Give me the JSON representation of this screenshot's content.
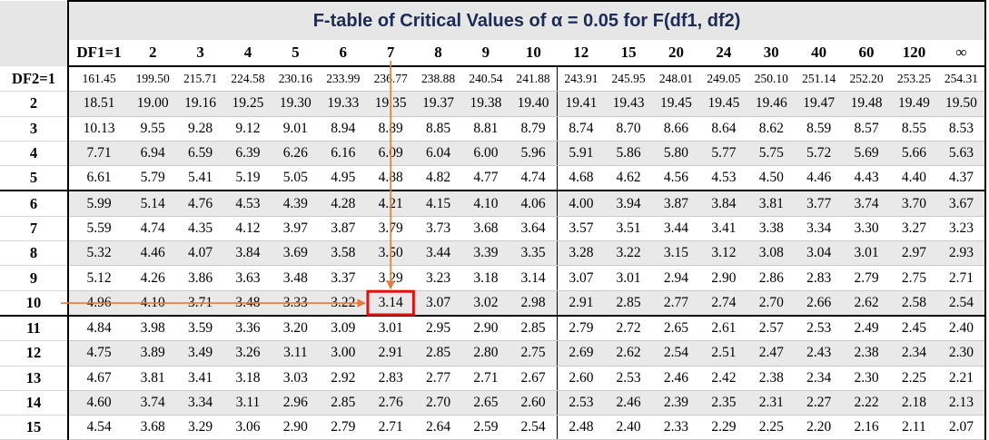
{
  "title": "F-table of Critical Values of α = 0.05 for F(df1, df2)",
  "df1_header": "DF1=1",
  "column_headers": [
    "2",
    "3",
    "4",
    "5",
    "6",
    "7",
    "8",
    "9",
    "10",
    "12",
    "15",
    "20",
    "24",
    "30",
    "40",
    "60",
    "120",
    "∞"
  ],
  "rows": [
    {
      "label": "DF2=1",
      "values": [
        "161.45",
        "199.50",
        "215.71",
        "224.58",
        "230.16",
        "233.99",
        "236.77",
        "238.88",
        "240.54",
        "241.88",
        "243.91",
        "245.95",
        "248.01",
        "249.05",
        "250.10",
        "251.14",
        "252.20",
        "253.25",
        "254.31"
      ]
    },
    {
      "label": "2",
      "values": [
        "18.51",
        "19.00",
        "19.16",
        "19.25",
        "19.30",
        "19.33",
        "19.35",
        "19.37",
        "19.38",
        "19.40",
        "19.41",
        "19.43",
        "19.45",
        "19.45",
        "19.46",
        "19.47",
        "19.48",
        "19.49",
        "19.50"
      ]
    },
    {
      "label": "3",
      "values": [
        "10.13",
        "9.55",
        "9.28",
        "9.12",
        "9.01",
        "8.94",
        "8.89",
        "8.85",
        "8.81",
        "8.79",
        "8.74",
        "8.70",
        "8.66",
        "8.64",
        "8.62",
        "8.59",
        "8.57",
        "8.55",
        "8.53"
      ]
    },
    {
      "label": "4",
      "values": [
        "7.71",
        "6.94",
        "6.59",
        "6.39",
        "6.26",
        "6.16",
        "6.09",
        "6.04",
        "6.00",
        "5.96",
        "5.91",
        "5.86",
        "5.80",
        "5.77",
        "5.75",
        "5.72",
        "5.69",
        "5.66",
        "5.63"
      ]
    },
    {
      "label": "5",
      "values": [
        "6.61",
        "5.79",
        "5.41",
        "5.19",
        "5.05",
        "4.95",
        "4.88",
        "4.82",
        "4.77",
        "4.74",
        "4.68",
        "4.62",
        "4.56",
        "4.53",
        "4.50",
        "4.46",
        "4.43",
        "4.40",
        "4.37"
      ]
    },
    {
      "label": "6",
      "values": [
        "5.99",
        "5.14",
        "4.76",
        "4.53",
        "4.39",
        "4.28",
        "4.21",
        "4.15",
        "4.10",
        "4.06",
        "4.00",
        "3.94",
        "3.87",
        "3.84",
        "3.81",
        "3.77",
        "3.74",
        "3.70",
        "3.67"
      ]
    },
    {
      "label": "7",
      "values": [
        "5.59",
        "4.74",
        "4.35",
        "4.12",
        "3.97",
        "3.87",
        "3.79",
        "3.73",
        "3.68",
        "3.64",
        "3.57",
        "3.51",
        "3.44",
        "3.41",
        "3.38",
        "3.34",
        "3.30",
        "3.27",
        "3.23"
      ]
    },
    {
      "label": "8",
      "values": [
        "5.32",
        "4.46",
        "4.07",
        "3.84",
        "3.69",
        "3.58",
        "3.50",
        "3.44",
        "3.39",
        "3.35",
        "3.28",
        "3.22",
        "3.15",
        "3.12",
        "3.08",
        "3.04",
        "3.01",
        "2.97",
        "2.93"
      ]
    },
    {
      "label": "9",
      "values": [
        "5.12",
        "4.26",
        "3.86",
        "3.63",
        "3.48",
        "3.37",
        "3.29",
        "3.23",
        "3.18",
        "3.14",
        "3.07",
        "3.01",
        "2.94",
        "2.90",
        "2.86",
        "2.83",
        "2.79",
        "2.75",
        "2.71"
      ]
    },
    {
      "label": "10",
      "values": [
        "4.96",
        "4.10",
        "3.71",
        "3.48",
        "3.33",
        "3.22",
        "3.14",
        "3.07",
        "3.02",
        "2.98",
        "2.91",
        "2.85",
        "2.77",
        "2.74",
        "2.70",
        "2.66",
        "2.62",
        "2.58",
        "2.54"
      ]
    },
    {
      "label": "11",
      "values": [
        "4.84",
        "3.98",
        "3.59",
        "3.36",
        "3.20",
        "3.09",
        "3.01",
        "2.95",
        "2.90",
        "2.85",
        "2.79",
        "2.72",
        "2.65",
        "2.61",
        "2.57",
        "2.53",
        "2.49",
        "2.45",
        "2.40"
      ]
    },
    {
      "label": "12",
      "values": [
        "4.75",
        "3.89",
        "3.49",
        "3.26",
        "3.11",
        "3.00",
        "2.91",
        "2.85",
        "2.80",
        "2.75",
        "2.69",
        "2.62",
        "2.54",
        "2.51",
        "2.47",
        "2.43",
        "2.38",
        "2.34",
        "2.30"
      ]
    },
    {
      "label": "13",
      "values": [
        "4.67",
        "3.81",
        "3.41",
        "3.18",
        "3.03",
        "2.92",
        "2.83",
        "2.77",
        "2.71",
        "2.67",
        "2.60",
        "2.53",
        "2.46",
        "2.42",
        "2.38",
        "2.34",
        "2.30",
        "2.25",
        "2.21"
      ]
    },
    {
      "label": "14",
      "values": [
        "4.60",
        "3.74",
        "3.34",
        "3.11",
        "2.96",
        "2.85",
        "2.76",
        "2.70",
        "2.65",
        "2.60",
        "2.53",
        "2.46",
        "2.39",
        "2.35",
        "2.31",
        "2.27",
        "2.22",
        "2.18",
        "2.13"
      ]
    },
    {
      "label": "15",
      "values": [
        "4.54",
        "3.68",
        "3.29",
        "3.06",
        "2.90",
        "2.79",
        "2.71",
        "2.64",
        "2.59",
        "2.54",
        "2.48",
        "2.40",
        "2.33",
        "2.29",
        "2.25",
        "2.20",
        "2.16",
        "2.11",
        "2.07"
      ]
    }
  ],
  "highlight": {
    "row_label": "10",
    "column_header": "7",
    "value": "3.14"
  },
  "colors": {
    "arrow": "#e8793a",
    "highlight_box": "#e01010",
    "title_text": "#1a2b55",
    "alt_row": "#e9e9e9",
    "header_bg": "#e6e6e6"
  }
}
